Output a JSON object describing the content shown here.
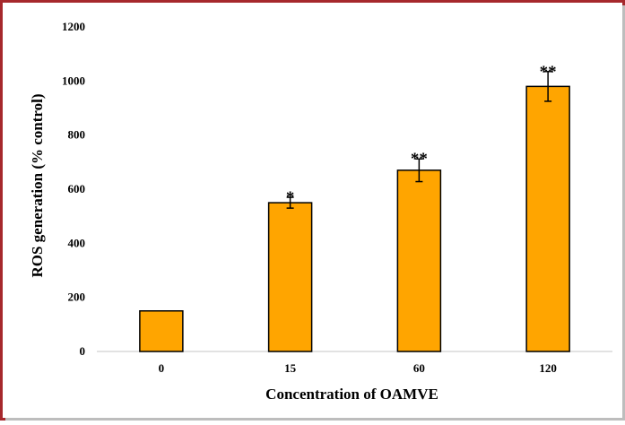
{
  "chart_data": {
    "type": "bar",
    "title": "",
    "xlabel": "Concentration of OAMVE",
    "ylabel": "ROS generation (% control)",
    "categories": [
      "0",
      "15",
      "60",
      "120"
    ],
    "values": [
      150,
      550,
      670,
      980
    ],
    "errors": [
      0,
      20,
      42,
      55
    ],
    "significance": [
      "",
      "*",
      "**",
      "**"
    ],
    "ylim": [
      0,
      1200
    ],
    "yticks": [
      0,
      200,
      400,
      600,
      800,
      1000,
      1200
    ],
    "grid": false,
    "legend": "none",
    "bar_color": "#ffa500",
    "bar_edge_color": "#000000"
  },
  "colors": {
    "border": "#a6282c",
    "bar": "#ffa500",
    "axis": "#d9d9d9"
  }
}
